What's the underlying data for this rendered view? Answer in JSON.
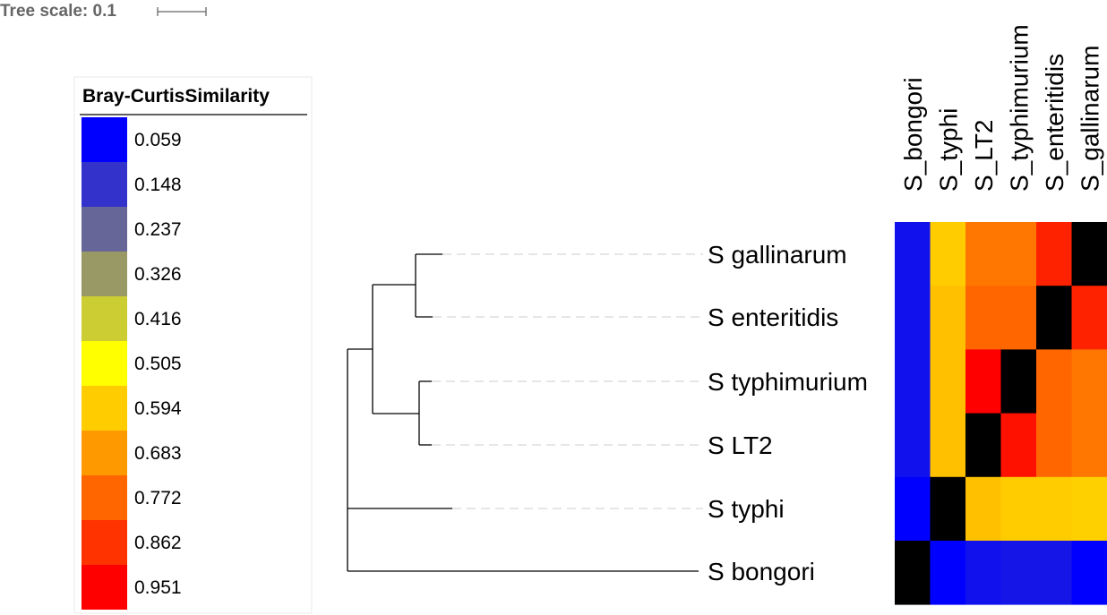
{
  "tree_scale": {
    "label": "Tree scale: 0.1",
    "value": 0.1
  },
  "legend": {
    "title": "Bray-CurtisSimilarity",
    "entries": [
      {
        "label": "0.059",
        "color": "#0000ff"
      },
      {
        "label": "0.148",
        "color": "#3333cc"
      },
      {
        "label": "0.237",
        "color": "#666699"
      },
      {
        "label": "0.326",
        "color": "#999966"
      },
      {
        "label": "0.416",
        "color": "#cccc33"
      },
      {
        "label": "0.505",
        "color": "#ffff00"
      },
      {
        "label": "0.594",
        "color": "#ffcc00"
      },
      {
        "label": "0.683",
        "color": "#ff9900"
      },
      {
        "label": "0.772",
        "color": "#ff6600"
      },
      {
        "label": "0.862",
        "color": "#ff3300"
      },
      {
        "label": "0.951",
        "color": "#ff0000"
      }
    ]
  },
  "tree": {
    "leaves": [
      "S gallinarum",
      "S enteritidis",
      "S typhimurium",
      "S LT2",
      "S typhi",
      "S bongori"
    ]
  },
  "heatmap": {
    "columns": [
      "S_bongori",
      "S_typhi",
      "S_LT2",
      "S_typhimurium",
      "S_enteritidis",
      "S_gallinarum"
    ],
    "rows": [
      {
        "name": "S gallinarum",
        "colors": [
          "#1111ee",
          "#ffcc00",
          "#ff7700",
          "#ff7700",
          "#ff2200",
          "#000000"
        ]
      },
      {
        "name": "S enteritidis",
        "colors": [
          "#1111ee",
          "#ffc000",
          "#ff6600",
          "#ff6600",
          "#000000",
          "#ff2200"
        ]
      },
      {
        "name": "S typhimurium",
        "colors": [
          "#1111ee",
          "#ffc000",
          "#ff0000",
          "#000000",
          "#ff6600",
          "#ff7700"
        ]
      },
      {
        "name": "S LT2",
        "colors": [
          "#1111ee",
          "#ffc000",
          "#000000",
          "#ff1100",
          "#ff6600",
          "#ff7700"
        ]
      },
      {
        "name": "S typhi",
        "colors": [
          "#0000ff",
          "#000000",
          "#ffc000",
          "#ffcc00",
          "#ffcc00",
          "#ffd000"
        ]
      },
      {
        "name": "S bongori",
        "colors": [
          "#000000",
          "#0000ff",
          "#1111ee",
          "#1515e8",
          "#1515e8",
          "#0000ff"
        ]
      }
    ]
  }
}
